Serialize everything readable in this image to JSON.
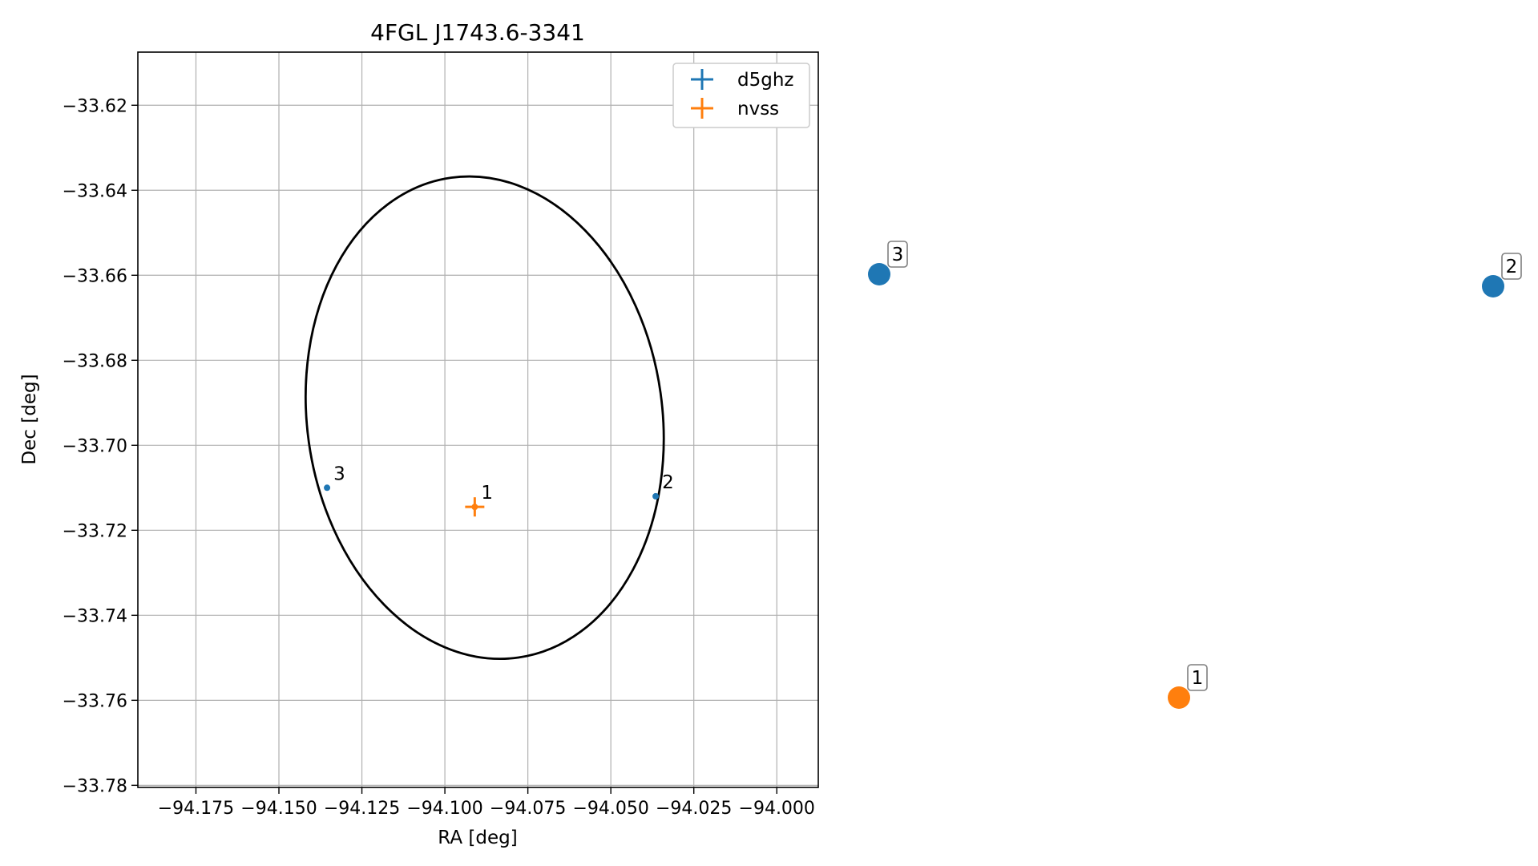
{
  "chart_data": [
    {
      "type": "scatter",
      "title": "4FGL J1743.6-3341",
      "xlabel": "RA [deg]",
      "ylabel": "Dec [deg]",
      "xlim": [
        -94.1925,
        -93.9875
      ],
      "ylim": [
        -33.7805,
        -33.6075
      ],
      "grid": true,
      "legend_position": "top-right",
      "x_ticks": [
        -94.175,
        -94.15,
        -94.125,
        -94.1,
        -94.075,
        -94.05,
        -94.025,
        -94.0
      ],
      "x_tick_labels": [
        "−94.175",
        "−94.150",
        "−94.125",
        "−94.100",
        "−94.075",
        "−94.050",
        "−94.025",
        "−94.000"
      ],
      "y_ticks": [
        -33.62,
        -33.64,
        -33.66,
        -33.68,
        -33.7,
        -33.72,
        -33.74,
        -33.76,
        -33.78
      ],
      "y_tick_labels": [
        "−33.62",
        "−33.64",
        "−33.66",
        "−33.68",
        "−33.70",
        "−33.72",
        "−33.74",
        "−33.76",
        "−33.78"
      ],
      "ellipse": {
        "center": [
          -94.088,
          -33.6935
        ],
        "semi_axes": [
          0.0535,
          0.057
        ],
        "color": "#000000"
      },
      "series": [
        {
          "name": "d5ghz",
          "color": "#1f77b4",
          "points": [
            {
              "label": "3",
              "x": -94.1355,
              "y": -33.71
            },
            {
              "label": "2",
              "x": -94.0365,
              "y": -33.712
            }
          ]
        },
        {
          "name": "nvss",
          "color": "#ff7f0e",
          "points": [
            {
              "label": "1",
              "x": -94.091,
              "y": -33.7145
            }
          ]
        }
      ]
    },
    {
      "type": "scatter",
      "markers": [
        {
          "label": "3",
          "color": "#1f77b4"
        },
        {
          "label": "2",
          "color": "#1f77b4"
        },
        {
          "label": "1",
          "color": "#ff7f0e"
        }
      ]
    }
  ]
}
